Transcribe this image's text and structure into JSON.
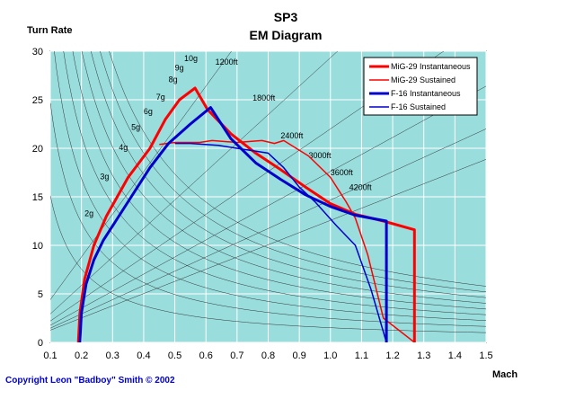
{
  "chart_data": {
    "type": "line",
    "title": "SP3",
    "subtitle": "EM Diagram",
    "ylabel": "Turn Rate",
    "xlabel": "Mach",
    "xlim": [
      0.1,
      1.5
    ],
    "ylim": [
      0,
      30
    ],
    "x_ticks": [
      "0.1",
      "0.2",
      "0.3",
      "0.4",
      "0.5",
      "0.6",
      "0.7",
      "0.8",
      "0.9",
      "1.0",
      "1.1",
      "1.2",
      "1.3",
      "1.4",
      "1.5"
    ],
    "y_ticks": [
      "0",
      "5",
      "10",
      "15",
      "20",
      "25",
      "30"
    ],
    "plot_background": "#99dddd",
    "g_labels": [
      {
        "text": "2g",
        "x": 0.21,
        "y": 13.0
      },
      {
        "text": "3g",
        "x": 0.26,
        "y": 16.8
      },
      {
        "text": "4g",
        "x": 0.32,
        "y": 19.8
      },
      {
        "text": "5g",
        "x": 0.36,
        "y": 21.9
      },
      {
        "text": "6g",
        "x": 0.4,
        "y": 23.5
      },
      {
        "text": "7g",
        "x": 0.44,
        "y": 25.0
      },
      {
        "text": "8g",
        "x": 0.48,
        "y": 26.8
      },
      {
        "text": "9g",
        "x": 0.5,
        "y": 28.0
      },
      {
        "text": "10g",
        "x": 0.53,
        "y": 29.0
      }
    ],
    "radius_labels": [
      {
        "text": "1200ft",
        "x": 0.63,
        "y": 28.6
      },
      {
        "text": "1800ft",
        "x": 0.75,
        "y": 24.9
      },
      {
        "text": "2400ft",
        "x": 0.84,
        "y": 21.0
      },
      {
        "text": "3000ft",
        "x": 0.93,
        "y": 19.0
      },
      {
        "text": "3600ft",
        "x": 1.0,
        "y": 17.2
      },
      {
        "text": "4200ft",
        "x": 1.06,
        "y": 15.7
      }
    ],
    "legend_position": "top-right",
    "series": [
      {
        "name": "MiG-29 Instantaneous",
        "color": "#ff0000",
        "width": 3,
        "points": [
          [
            0.19,
            0
          ],
          [
            0.195,
            3
          ],
          [
            0.21,
            6.5
          ],
          [
            0.24,
            10
          ],
          [
            0.28,
            13
          ],
          [
            0.35,
            17
          ],
          [
            0.42,
            20
          ],
          [
            0.47,
            23
          ],
          [
            0.515,
            25
          ],
          [
            0.565,
            26.2
          ],
          [
            0.605,
            24
          ],
          [
            0.68,
            21.5
          ],
          [
            0.76,
            19.5
          ],
          [
            0.84,
            17.8
          ],
          [
            0.92,
            16
          ],
          [
            1.0,
            14.3
          ],
          [
            1.08,
            13.2
          ],
          [
            1.17,
            12.5
          ],
          [
            1.27,
            11.6
          ],
          [
            1.27,
            0
          ]
        ]
      },
      {
        "name": "MiG-29 Sustained",
        "color": "#ff0000",
        "width": 1.5,
        "points": [
          [
            0.45,
            20.4
          ],
          [
            0.5,
            20.6
          ],
          [
            0.58,
            20.6
          ],
          [
            0.62,
            20.8
          ],
          [
            0.7,
            20.6
          ],
          [
            0.78,
            20.8
          ],
          [
            0.82,
            20.5
          ],
          [
            0.85,
            20.8
          ],
          [
            0.93,
            19.2
          ],
          [
            1.0,
            17
          ],
          [
            1.05,
            14.5
          ],
          [
            1.08,
            12.8
          ],
          [
            1.12,
            9
          ],
          [
            1.17,
            2.5
          ],
          [
            1.19,
            2
          ],
          [
            1.27,
            0
          ]
        ]
      },
      {
        "name": "F-16 Instantaneous",
        "color": "#0000cc",
        "width": 3,
        "points": [
          [
            0.195,
            0
          ],
          [
            0.2,
            3
          ],
          [
            0.215,
            6
          ],
          [
            0.24,
            8.5
          ],
          [
            0.27,
            10.5
          ],
          [
            0.31,
            12.5
          ],
          [
            0.36,
            15
          ],
          [
            0.42,
            18
          ],
          [
            0.48,
            20.5
          ],
          [
            0.55,
            22.5
          ],
          [
            0.615,
            24.2
          ],
          [
            0.68,
            21
          ],
          [
            0.76,
            18.5
          ],
          [
            0.84,
            16.8
          ],
          [
            0.92,
            15.2
          ],
          [
            1.0,
            14
          ],
          [
            1.08,
            13.1
          ],
          [
            1.18,
            12.5
          ],
          [
            1.18,
            0
          ]
        ]
      },
      {
        "name": "F-16 Sustained",
        "color": "#0000cc",
        "width": 1.5,
        "points": [
          [
            0.5,
            20.5
          ],
          [
            0.55,
            20.5
          ],
          [
            0.64,
            20.3
          ],
          [
            0.7,
            20
          ],
          [
            0.8,
            19.5
          ],
          [
            0.85,
            18
          ],
          [
            0.9,
            16
          ],
          [
            0.95,
            14.5
          ],
          [
            1.02,
            12
          ],
          [
            1.08,
            10
          ],
          [
            1.13,
            5.5
          ],
          [
            1.18,
            0
          ]
        ]
      }
    ]
  },
  "copyright": "Copyright Leon \"Badboy\" Smith © 2002"
}
